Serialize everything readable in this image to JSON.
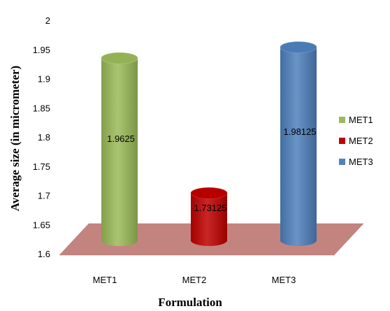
{
  "chart_data": {
    "type": "bar",
    "categories": [
      "MET1",
      "MET2",
      "MET3"
    ],
    "values": [
      1.9625,
      1.73125,
      1.98125
    ],
    "data_labels": [
      "1.9625",
      "1.73125",
      "1.98125"
    ],
    "xlabel": "Formulation",
    "ylabel": "Average size (in micrometer)",
    "ylim": [
      1.6,
      2.0
    ],
    "yticks": [
      "1.6",
      "1.65",
      "1.7",
      "1.75",
      "1.8",
      "1.85",
      "1.9",
      "1.95",
      "2"
    ],
    "bar_shape": "cylinder",
    "grid": false,
    "legend": {
      "placement": "right",
      "entries": [
        "MET1",
        "MET2",
        "MET3"
      ]
    },
    "colors": [
      "#9bbb59",
      "#c00000",
      "#4f81bd"
    ],
    "floor_color": "#c0807f"
  }
}
